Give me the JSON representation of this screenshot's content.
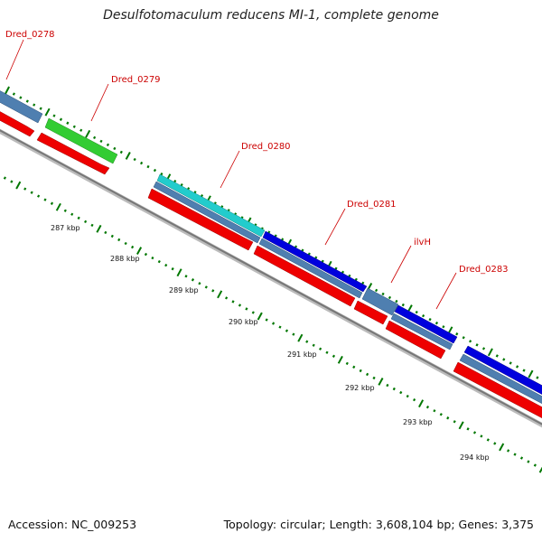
{
  "title": "Desulfotomaculum reducens MI-1, complete genome",
  "footer": {
    "accession": "Accession: NC_009253",
    "summary": "Topology: circular; Length: 3,608,104 bp; Genes: 3,375"
  },
  "colors": {
    "cds_strand": "#ee0000",
    "gene_blue": "#0000dd",
    "gene_steel": "#4f7fb0",
    "gene_green": "#33cc33",
    "gene_cyan": "#22cccc",
    "backbone": "#888888",
    "ticks": "#007700",
    "label_red": "#cc0000"
  },
  "gene_labels": [
    {
      "id": "dred-0278",
      "text": "Dred_0278"
    },
    {
      "id": "dred-0279",
      "text": "Dred_0279"
    },
    {
      "id": "dred-0280",
      "text": "Dred_0280"
    },
    {
      "id": "dred-0281",
      "text": "Dred_0281"
    },
    {
      "id": "ilvh",
      "text": "ilvH"
    },
    {
      "id": "dred-0283",
      "text": "Dred_0283"
    }
  ],
  "kbp_labels": [
    "287 kbp",
    "288 kbp",
    "289 kbp",
    "290 kbp",
    "291 kbp",
    "292 kbp",
    "293 kbp",
    "294 kbp"
  ]
}
